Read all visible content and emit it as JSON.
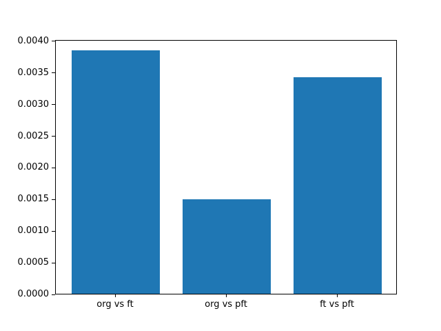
{
  "chart_data": {
    "type": "bar",
    "title": "",
    "categories": [
      "org vs ft",
      "org vs pft",
      "ft vs pft"
    ],
    "values": [
      0.00385,
      0.00149,
      0.00342
    ],
    "bar_color": "#1f77b4",
    "bar_width": 0.8,
    "xlabel": "",
    "ylabel": "",
    "ylim": [
      0,
      0.00402
    ],
    "ytick_values": [
      0.0,
      0.0005,
      0.001,
      0.0015,
      0.002,
      0.0025,
      0.003,
      0.0035,
      0.004
    ],
    "ytick_labels": [
      "0.0000",
      "0.0005",
      "0.0010",
      "0.0015",
      "0.0020",
      "0.0025",
      "0.0030",
      "0.0035",
      "0.0040"
    ],
    "grid": false,
    "legend": "none",
    "background_color": "#ffffff",
    "spine_color": "#000000",
    "text_color": "#000000"
  }
}
